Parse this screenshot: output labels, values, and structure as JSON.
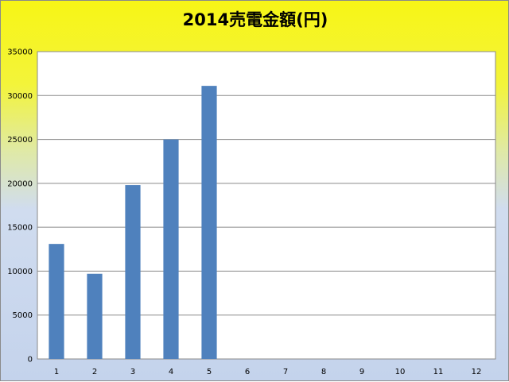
{
  "chart_data": {
    "type": "bar",
    "title": "2014売電金額(円)",
    "xlabel": "",
    "ylabel": "",
    "categories": [
      "1",
      "2",
      "3",
      "4",
      "5",
      "6",
      "7",
      "8",
      "9",
      "10",
      "11",
      "12"
    ],
    "values": [
      13100,
      9700,
      19800,
      25000,
      31100,
      0,
      0,
      0,
      0,
      0,
      0,
      0
    ],
    "ylim": [
      0,
      35000
    ],
    "yticks": [
      0,
      5000,
      10000,
      15000,
      20000,
      25000,
      30000,
      35000
    ],
    "grid": true,
    "legend": "none",
    "bar_color": "#4f81bd"
  }
}
